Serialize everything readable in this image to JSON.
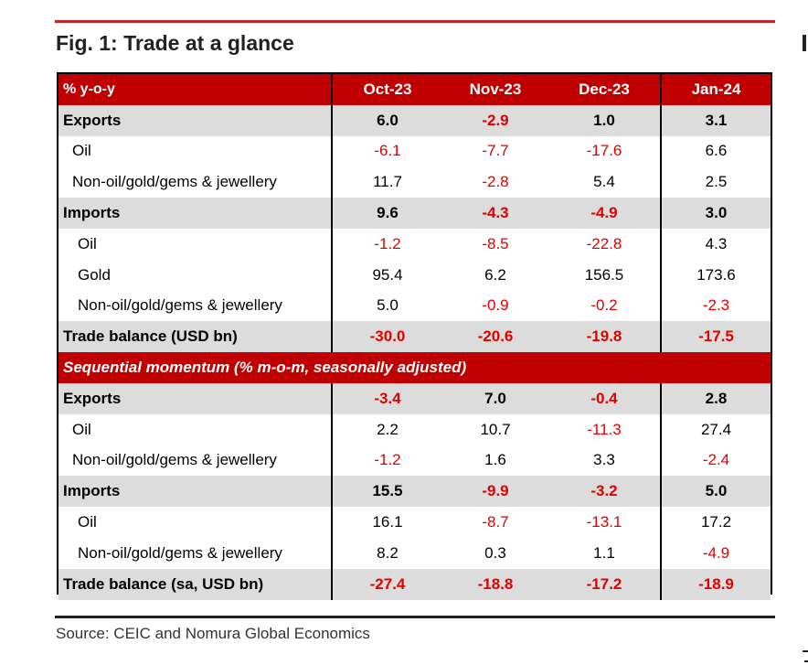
{
  "figure": {
    "title": "Fig. 1: Trade at a glance",
    "source": "Source: CEIC and Nomura Global Economics"
  },
  "colors": {
    "accent": "#c00000",
    "negative": "#e00000",
    "shaded_row": "#dcdcdc"
  },
  "table": {
    "header": {
      "label": "% y-o-y",
      "months": [
        "Oct-23",
        "Nov-23",
        "Dec-23",
        "Jan-24"
      ]
    },
    "yoy_rows": [
      {
        "label": "Exports",
        "values": [
          "6.0",
          "-2.9",
          "1.0",
          "3.1"
        ]
      },
      {
        "label": "Oil",
        "values": [
          "-6.1",
          "-7.7",
          "-17.6",
          "6.6"
        ]
      },
      {
        "label": "Non-oil/gold/gems & jewellery",
        "values": [
          "11.7",
          "-2.8",
          "5.4",
          "2.5"
        ]
      },
      {
        "label": "Imports",
        "values": [
          "9.6",
          "-4.3",
          "-4.9",
          "3.0"
        ]
      },
      {
        "label": "Oil",
        "values": [
          "-1.2",
          "-8.5",
          "-22.8",
          "4.3"
        ]
      },
      {
        "label": "Gold",
        "values": [
          "95.4",
          "6.2",
          "156.5",
          "173.6"
        ]
      },
      {
        "label": "Non-oil/gold/gems & jewellery",
        "values": [
          "5.0",
          "-0.9",
          "-0.2",
          "-2.3"
        ]
      },
      {
        "label": "Trade balance (USD bn)",
        "values": [
          "-30.0",
          "-20.6",
          "-19.8",
          "-17.5"
        ]
      }
    ],
    "section_label": "Sequential momentum (% m-o-m, seasonally adjusted)",
    "mom_rows": [
      {
        "label": "Exports",
        "values": [
          "-3.4",
          "7.0",
          "-0.4",
          "2.8"
        ]
      },
      {
        "label": "Oil",
        "values": [
          "2.2",
          "10.7",
          "-11.3",
          "27.4"
        ]
      },
      {
        "label": "Non-oil/gold/gems & jewellery",
        "values": [
          "-1.2",
          "1.6",
          "3.3",
          "-2.4"
        ]
      },
      {
        "label": "Imports",
        "values": [
          "15.5",
          "-9.9",
          "-3.2",
          "5.0"
        ]
      },
      {
        "label": "Oil",
        "values": [
          "16.1",
          "-8.7",
          "-13.1",
          "17.2"
        ]
      },
      {
        "label": "Non-oil/gold/gems & jewellery",
        "values": [
          "8.2",
          "0.3",
          "1.1",
          "-4.9"
        ]
      },
      {
        "label": "Trade balance (sa, USD bn)",
        "values": [
          "-27.4",
          "-18.8",
          "-17.2",
          "-18.9"
        ]
      }
    ]
  }
}
